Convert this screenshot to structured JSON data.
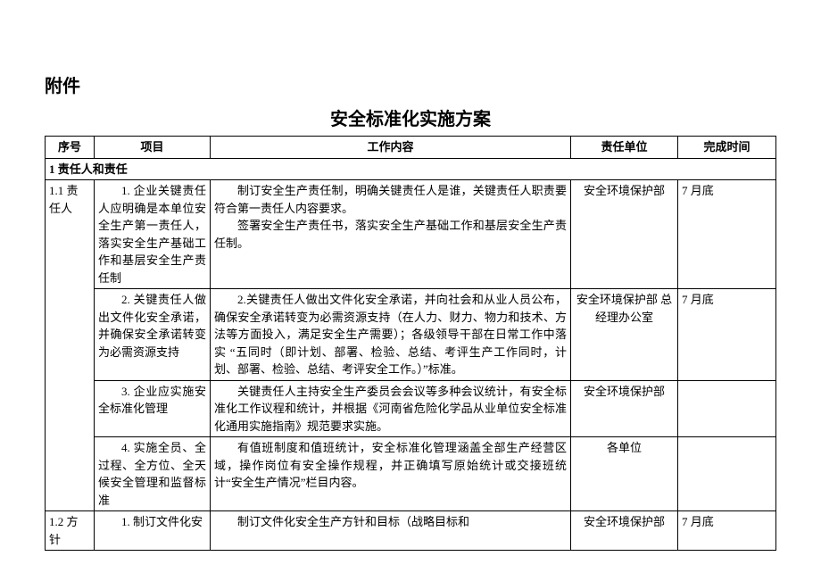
{
  "heading": "附件",
  "title": "安全标准化实施方案",
  "columns": [
    "序号",
    "项目",
    "工作内容",
    "责任单位",
    "完成时间"
  ],
  "section1": "1 责任人和责任",
  "rows": [
    {
      "seq": "1.1 责 任人",
      "project": "1. 企业关键责任人应明确是本单位安全生产第一责任人，落实安全生产基础工作和基层安全生产责任制",
      "content": "制订安全生产责任制，明确关键责任人是谁，关键责任人职责要符合第一责任人内容要求。\n签署安全生产责任书，落实安全生产基础工作和基层安全生产责任制。",
      "unit": "安全环境保护部",
      "time": "7 月底"
    },
    {
      "seq": "",
      "project": "2. 关键责任人做出文件化安全承诺，并确保安全承诺转变为必需资源支持",
      "content": "2.关键责任人做出文件化安全承诺，并向社会和从业人员公布，确保安全承诺转变为必需资源支持（在人力、财力、物力和技术、方法等方面投入，满足安全生产需要）；各级领导干部在日常工作中落实 “五同时（即计划、部署、检验、总结、考评生产工作同时，计划、部署、检验、总结、考评安全工作。）”标准。",
      "unit": "安全环境保护部 总经理办公室",
      "time": "7 月底"
    },
    {
      "seq": "",
      "project": "3. 企业应实施安全标准化管理",
      "content": "关键责任人主持安全生产委员会会议等多种会议统计，有安全标准化工作议程和统计，并根据《河南省危险化学品从业单位安全标准化通用实施指南》规范要求实施。",
      "unit": "安全环境保护部",
      "time": ""
    },
    {
      "seq": "",
      "project": "4. 实施全员、全过程、全方位、全天候安全管理和监督标准",
      "content": "有值班制度和值班统计，安全标准化管理涵盖全部生产经营区域，操作岗位有安全操作规程，并正确填写原始统计或交接班统计“安全生产情况”栏目内容。",
      "unit": "各单位",
      "time": ""
    },
    {
      "seq": "1.2 方 针",
      "project": "1. 制订文件化安",
      "content": "制订文件化安全生产方针和目标（战略目标和",
      "unit": "安全环境保护部",
      "time": "7 月底"
    }
  ]
}
